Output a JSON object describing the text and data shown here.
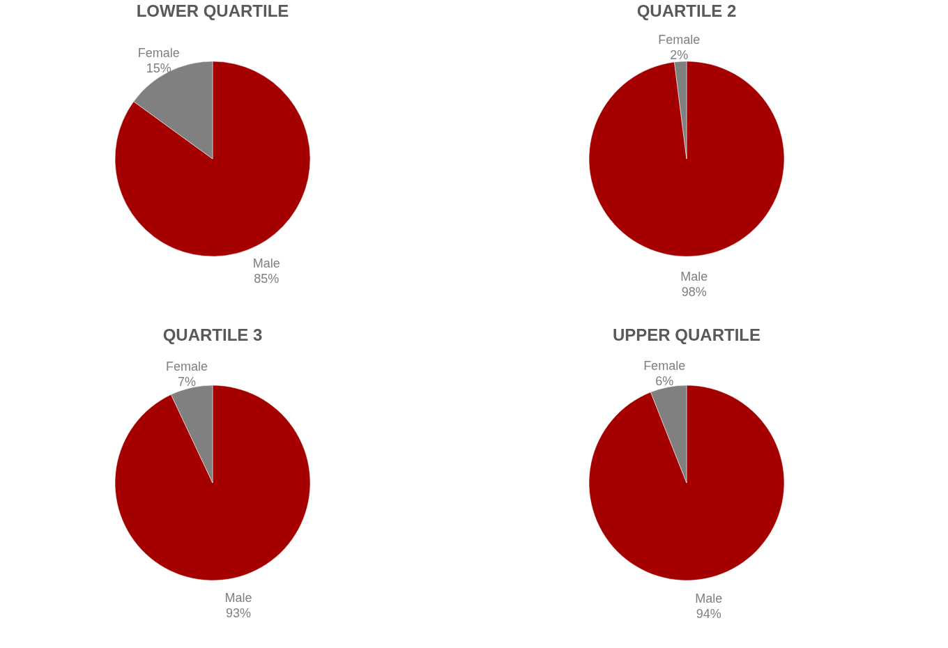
{
  "chart_data": [
    {
      "type": "pie",
      "title": "LOWER QUARTILE",
      "categories": [
        "Male",
        "Female"
      ],
      "values": [
        85,
        15
      ],
      "value_labels": [
        "85%",
        "15%"
      ],
      "colors": [
        "#a50000",
        "#808080"
      ]
    },
    {
      "type": "pie",
      "title": "QUARTILE 2",
      "categories": [
        "Male",
        "Female"
      ],
      "values": [
        98,
        2
      ],
      "value_labels": [
        "98%",
        "2%"
      ],
      "colors": [
        "#a50000",
        "#808080"
      ]
    },
    {
      "type": "pie",
      "title": "QUARTILE 3",
      "categories": [
        "Male",
        "Female"
      ],
      "values": [
        93,
        7
      ],
      "value_labels": [
        "93%",
        "7%"
      ],
      "colors": [
        "#a50000",
        "#808080"
      ]
    },
    {
      "type": "pie",
      "title": "UPPER QUARTILE",
      "categories": [
        "Male",
        "Female"
      ],
      "values": [
        94,
        6
      ],
      "value_labels": [
        "94%",
        "6%"
      ],
      "colors": [
        "#a50000",
        "#808080"
      ]
    }
  ]
}
